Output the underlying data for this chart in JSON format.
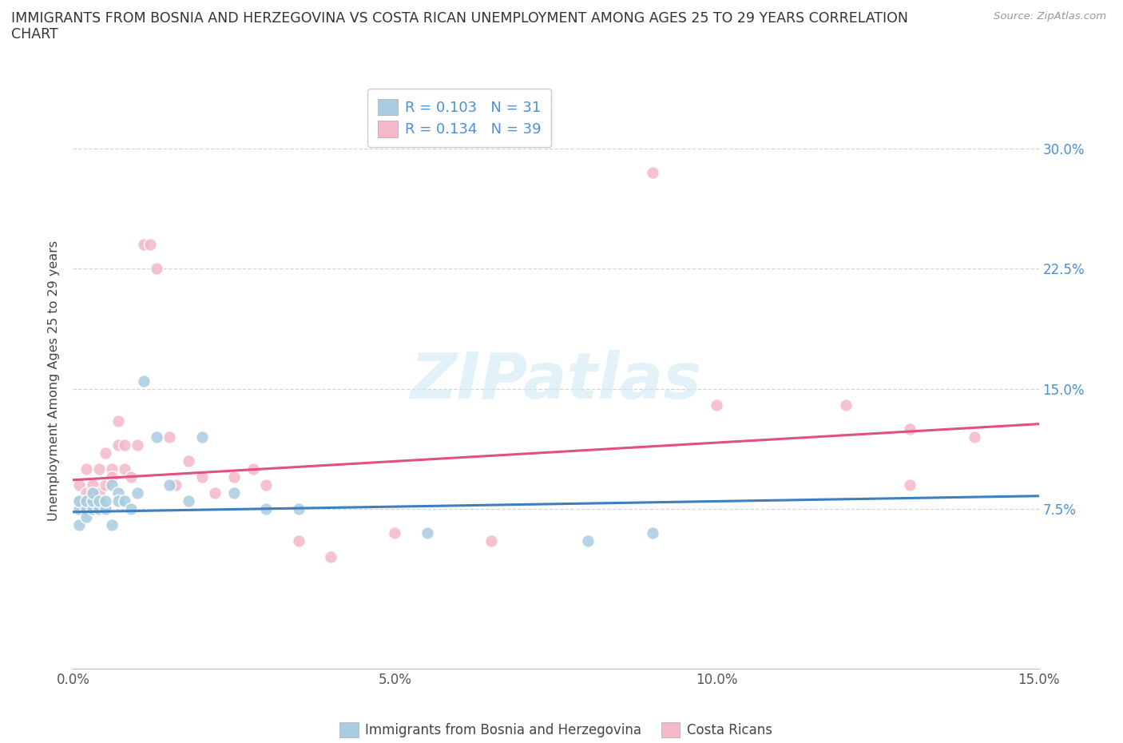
{
  "title_line1": "IMMIGRANTS FROM BOSNIA AND HERZEGOVINA VS COSTA RICAN UNEMPLOYMENT AMONG AGES 25 TO 29 YEARS CORRELATION",
  "title_line2": "CHART",
  "source": "Source: ZipAtlas.com",
  "ylabel": "Unemployment Among Ages 25 to 29 years",
  "xlabel": "",
  "xlim": [
    0.0,
    0.15
  ],
  "ylim": [
    -0.025,
    0.335
  ],
  "yticks": [
    0.075,
    0.15,
    0.225,
    0.3
  ],
  "ytick_labels": [
    "7.5%",
    "15.0%",
    "22.5%",
    "30.0%"
  ],
  "xticks": [
    0.0,
    0.05,
    0.1,
    0.15
  ],
  "xtick_labels": [
    "0.0%",
    "5.0%",
    "10.0%",
    "15.0%"
  ],
  "blue_R": 0.103,
  "blue_N": 31,
  "pink_R": 0.134,
  "pink_N": 39,
  "blue_color": "#a8cce0",
  "pink_color": "#f4b8c8",
  "line_blue": "#3d7fbf",
  "line_pink": "#e05080",
  "tick_color": "#4a90d9",
  "watermark": "ZIPatlas",
  "blue_scatter_x": [
    0.001,
    0.001,
    0.001,
    0.002,
    0.002,
    0.002,
    0.003,
    0.003,
    0.003,
    0.004,
    0.004,
    0.005,
    0.005,
    0.006,
    0.006,
    0.007,
    0.007,
    0.008,
    0.009,
    0.01,
    0.011,
    0.013,
    0.015,
    0.018,
    0.02,
    0.025,
    0.03,
    0.035,
    0.055,
    0.08,
    0.09
  ],
  "blue_scatter_y": [
    0.075,
    0.08,
    0.065,
    0.075,
    0.08,
    0.07,
    0.075,
    0.08,
    0.085,
    0.075,
    0.08,
    0.075,
    0.08,
    0.065,
    0.09,
    0.085,
    0.08,
    0.08,
    0.075,
    0.085,
    0.155,
    0.12,
    0.09,
    0.08,
    0.12,
    0.085,
    0.075,
    0.075,
    0.06,
    0.055,
    0.06
  ],
  "pink_scatter_x": [
    0.001,
    0.001,
    0.002,
    0.002,
    0.003,
    0.003,
    0.004,
    0.004,
    0.005,
    0.005,
    0.006,
    0.006,
    0.007,
    0.007,
    0.008,
    0.008,
    0.009,
    0.01,
    0.011,
    0.012,
    0.013,
    0.015,
    0.016,
    0.018,
    0.02,
    0.022,
    0.025,
    0.028,
    0.03,
    0.035,
    0.04,
    0.05,
    0.065,
    0.09,
    0.1,
    0.12,
    0.13,
    0.13,
    0.14
  ],
  "pink_scatter_y": [
    0.09,
    0.08,
    0.085,
    0.1,
    0.08,
    0.09,
    0.085,
    0.1,
    0.09,
    0.11,
    0.1,
    0.095,
    0.115,
    0.13,
    0.1,
    0.115,
    0.095,
    0.115,
    0.24,
    0.24,
    0.225,
    0.12,
    0.09,
    0.105,
    0.095,
    0.085,
    0.095,
    0.1,
    0.09,
    0.055,
    0.045,
    0.06,
    0.055,
    0.285,
    0.14,
    0.14,
    0.125,
    0.09,
    0.12
  ],
  "grid_color": "#d0d0d0",
  "bg_color": "#ffffff"
}
